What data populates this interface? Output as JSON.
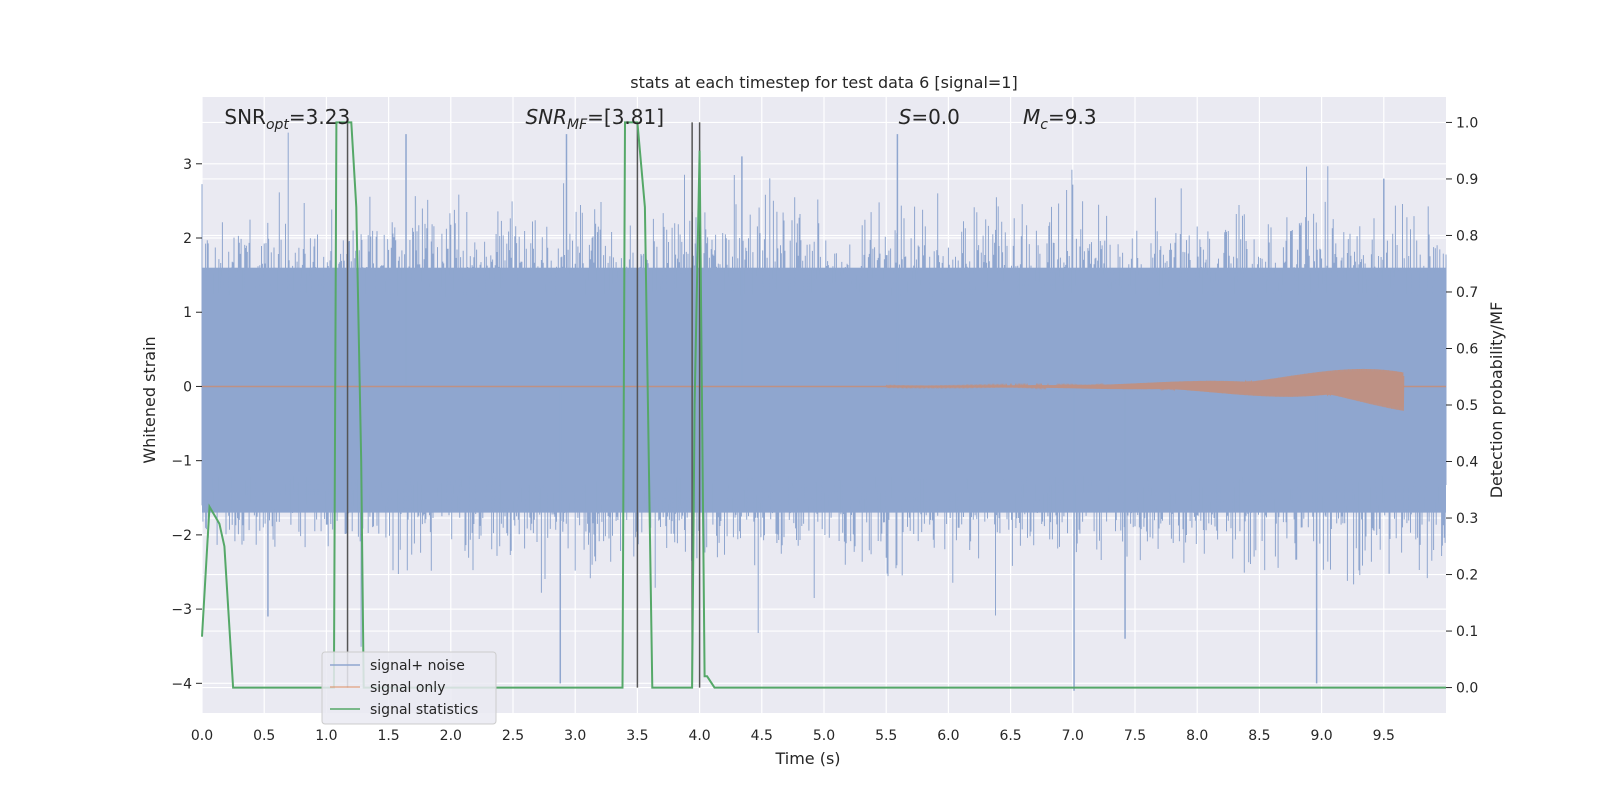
{
  "chart_data": {
    "type": "line",
    "title": "stats at each timestep for test data 6 [signal=1]",
    "xlabel": "Time (s)",
    "ylabel": "Whitened strain",
    "y2label": "Detection probability/MF",
    "xlim": [
      0.0,
      10.0
    ],
    "ylim": [
      -4.4,
      3.9
    ],
    "y2lim": [
      -0.045,
      1.045
    ],
    "xticks": [
      0.0,
      0.5,
      1.0,
      1.5,
      2.0,
      2.5,
      3.0,
      3.5,
      4.0,
      4.5,
      5.0,
      5.5,
      6.0,
      6.5,
      7.0,
      7.5,
      8.0,
      8.5,
      9.0,
      9.5
    ],
    "xtick_labels": [
      "0.0",
      "0.5",
      "1.0",
      "1.5",
      "2.0",
      "2.5",
      "3.0",
      "3.5",
      "4.0",
      "4.5",
      "5.0",
      "5.5",
      "6.0",
      "6.5",
      "7.0",
      "7.5",
      "8.0",
      "8.5",
      "9.0",
      "9.5"
    ],
    "yticks": [
      -4,
      -3,
      -2,
      -1,
      0,
      1,
      2,
      3
    ],
    "ytick_labels": [
      "−4",
      "−3",
      "−2",
      "−1",
      "0",
      "1",
      "2",
      "3"
    ],
    "y2ticks": [
      0.0,
      0.1,
      0.2,
      0.3,
      0.4,
      0.5,
      0.6,
      0.7,
      0.8,
      0.9,
      1.0
    ],
    "y2tick_labels": [
      "0.0",
      "0.1",
      "0.2",
      "0.3",
      "0.4",
      "0.5",
      "0.6",
      "0.7",
      "0.8",
      "0.9",
      "1.0"
    ],
    "grid": true,
    "legend_position": "lower-left",
    "annotations": [
      {
        "id": "snr-opt",
        "text": "SNR_opt=3.23",
        "italic": false,
        "x": 0.18
      },
      {
        "id": "snr-mf",
        "text": "SNR_MF=[3.81]",
        "italic": true,
        "x": 2.6
      },
      {
        "id": "s-stat",
        "text": "S=0.0",
        "italic": true,
        "x": 5.6
      },
      {
        "id": "mc",
        "text": "M_c=9.3",
        "italic": true,
        "x": 6.6
      }
    ],
    "series": [
      {
        "name": "signal+ noise",
        "axis": "left",
        "color": "#8fa6cf",
        "style": "dense noise band",
        "band_typical": [
          -1.7,
          1.6
        ],
        "extreme_peaks": [
          {
            "x": 0.53,
            "y": -3.1
          },
          {
            "x": 1.64,
            "y": 3.4
          },
          {
            "x": 2.88,
            "y": -4.0
          },
          {
            "x": 2.93,
            "y": 3.4
          },
          {
            "x": 4.34,
            "y": 3.1
          },
          {
            "x": 5.59,
            "y": 3.4
          },
          {
            "x": 7.01,
            "y": -4.1
          },
          {
            "x": 7.42,
            "y": -3.4
          },
          {
            "x": 8.96,
            "y": -4.0
          },
          {
            "x": 9.5,
            "y": 2.8
          }
        ]
      },
      {
        "name": "signal only",
        "axis": "left",
        "color": "#dd8452",
        "style": "chirp",
        "start_x": 5.5,
        "end_x": 9.66,
        "peak_amplitude": 0.32
      },
      {
        "name": "signal statistics",
        "axis": "right",
        "color": "#55a868",
        "x": [
          0.0,
          0.06,
          0.14,
          0.18,
          0.25,
          1.06,
          1.08,
          1.1,
          1.17,
          1.2,
          1.24,
          1.28,
          1.3,
          3.38,
          3.4,
          3.44,
          3.5,
          3.56,
          3.62,
          3.94,
          3.96,
          4.0,
          4.04,
          4.06,
          4.12,
          10.0
        ],
        "y": [
          0.09,
          0.32,
          0.29,
          0.25,
          0.0,
          0.0,
          1.0,
          1.0,
          1.0,
          1.0,
          0.85,
          0.4,
          0.0,
          0.0,
          1.0,
          1.0,
          1.0,
          0.85,
          0.0,
          0.0,
          0.5,
          0.95,
          0.02,
          0.02,
          0.0,
          0.0
        ]
      }
    ],
    "vertical_markers": {
      "color": "#555555",
      "x": [
        1.17,
        3.5,
        3.94,
        4.0
      ]
    }
  }
}
